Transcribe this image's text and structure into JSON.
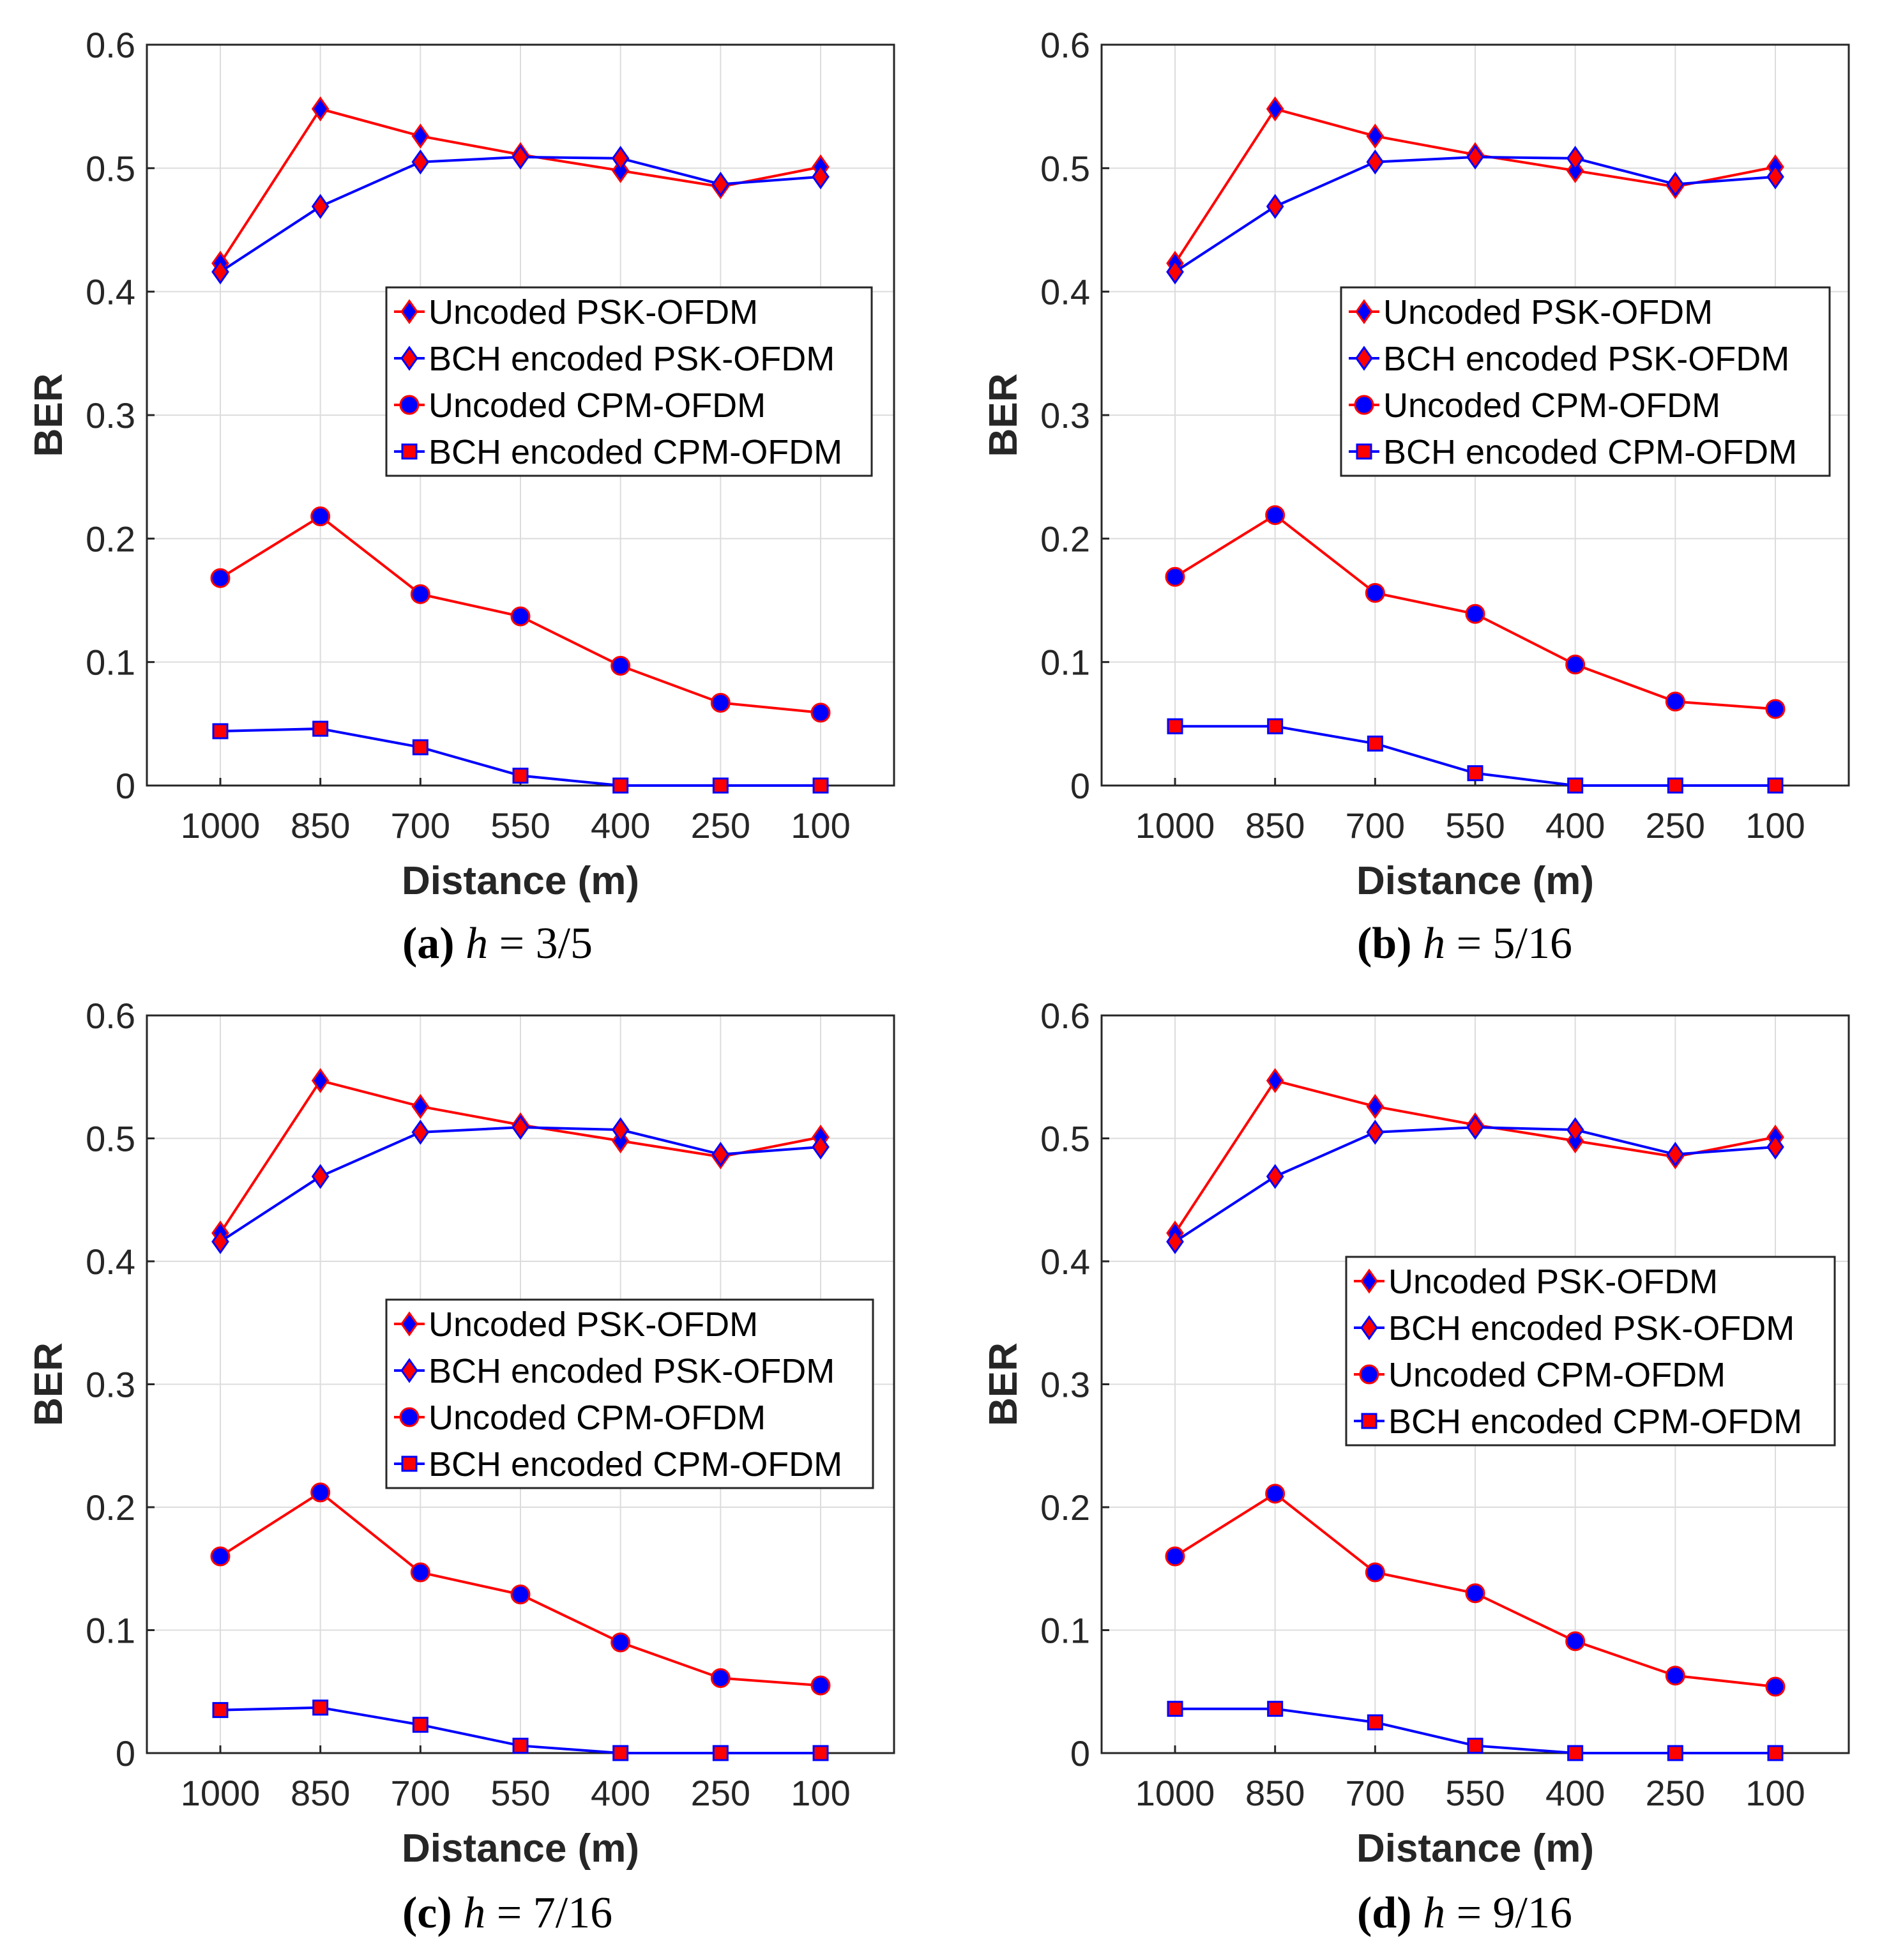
{
  "colors": {
    "red": "#ff0000",
    "blue": "#0000ff",
    "grid": "#dcdcdc",
    "axis": "#262626"
  },
  "chart_data": [
    {
      "type": "line",
      "caption": {
        "letter": "(a)",
        "variable": "h",
        "equals": "=",
        "value": "3/5"
      },
      "xlabel": "Distance (m)",
      "ylabel": "BER",
      "categories": [
        "1000",
        "850",
        "700",
        "550",
        "400",
        "250",
        "100"
      ],
      "ylim": [
        0,
        0.6
      ],
      "yticks": [
        "0",
        "0.1",
        "0.2",
        "0.3",
        "0.4",
        "0.5",
        "0.6"
      ],
      "grid": true,
      "legend_position": "right-middle",
      "series": [
        {
          "name": "Uncoded PSK-OFDM",
          "marker": "diamond",
          "line": "red",
          "face": "blue",
          "edge": "red",
          "values": [
            0.423,
            0.548,
            0.526,
            0.511,
            0.498,
            0.485,
            0.501
          ]
        },
        {
          "name": "BCH encoded PSK-OFDM",
          "marker": "diamond",
          "line": "blue",
          "face": "red",
          "edge": "blue",
          "values": [
            0.416,
            0.469,
            0.505,
            0.509,
            0.508,
            0.487,
            0.493
          ]
        },
        {
          "name": "Uncoded CPM-OFDM",
          "marker": "circle",
          "line": "red",
          "face": "blue",
          "edge": "red",
          "values": [
            0.168,
            0.218,
            0.155,
            0.137,
            0.097,
            0.067,
            0.059
          ]
        },
        {
          "name": "BCH encoded CPM-OFDM",
          "marker": "square",
          "line": "blue",
          "face": "red",
          "edge": "blue",
          "values": [
            0.044,
            0.046,
            0.031,
            0.008,
            0.0,
            0.0,
            0.0
          ]
        }
      ]
    },
    {
      "type": "line",
      "caption": {
        "letter": "(b)",
        "variable": "h",
        "equals": "=",
        "value": "5/16"
      },
      "xlabel": "Distance (m)",
      "ylabel": "BER",
      "categories": [
        "1000",
        "850",
        "700",
        "550",
        "400",
        "250",
        "100"
      ],
      "ylim": [
        0,
        0.6
      ],
      "yticks": [
        "0",
        "0.1",
        "0.2",
        "0.3",
        "0.4",
        "0.5",
        "0.6"
      ],
      "grid": true,
      "legend_position": "right-middle",
      "series": [
        {
          "name": "Uncoded PSK-OFDM",
          "marker": "diamond",
          "line": "red",
          "face": "blue",
          "edge": "red",
          "values": [
            0.423,
            0.548,
            0.526,
            0.511,
            0.498,
            0.485,
            0.501
          ]
        },
        {
          "name": "BCH encoded PSK-OFDM",
          "marker": "diamond",
          "line": "blue",
          "face": "red",
          "edge": "blue",
          "values": [
            0.416,
            0.469,
            0.505,
            0.509,
            0.508,
            0.487,
            0.493
          ]
        },
        {
          "name": "Uncoded CPM-OFDM",
          "marker": "circle",
          "line": "red",
          "face": "blue",
          "edge": "red",
          "values": [
            0.169,
            0.219,
            0.156,
            0.139,
            0.098,
            0.068,
            0.062
          ]
        },
        {
          "name": "BCH encoded CPM-OFDM",
          "marker": "square",
          "line": "blue",
          "face": "red",
          "edge": "blue",
          "values": [
            0.048,
            0.048,
            0.034,
            0.01,
            0.0,
            0.0,
            0.0
          ]
        }
      ]
    },
    {
      "type": "line",
      "caption": {
        "letter": "(c)",
        "variable": "h",
        "equals": "=",
        "value": "7/16"
      },
      "xlabel": "Distance (m)",
      "ylabel": "BER",
      "categories": [
        "1000",
        "850",
        "700",
        "550",
        "400",
        "250",
        "100"
      ],
      "ylim": [
        0,
        0.6
      ],
      "yticks": [
        "0",
        "0.1",
        "0.2",
        "0.3",
        "0.4",
        "0.5",
        "0.6"
      ],
      "grid": true,
      "legend_position": "right-middle",
      "series": [
        {
          "name": "Uncoded PSK-OFDM",
          "marker": "diamond",
          "line": "red",
          "face": "blue",
          "edge": "red",
          "values": [
            0.423,
            0.547,
            0.526,
            0.511,
            0.498,
            0.485,
            0.501
          ]
        },
        {
          "name": "BCH encoded PSK-OFDM",
          "marker": "diamond",
          "line": "blue",
          "face": "red",
          "edge": "blue",
          "values": [
            0.416,
            0.469,
            0.505,
            0.509,
            0.507,
            0.487,
            0.493
          ]
        },
        {
          "name": "Uncoded CPM-OFDM",
          "marker": "circle",
          "line": "red",
          "face": "blue",
          "edge": "red",
          "values": [
            0.16,
            0.212,
            0.147,
            0.129,
            0.09,
            0.061,
            0.055
          ]
        },
        {
          "name": "BCH encoded CPM-OFDM",
          "marker": "square",
          "line": "blue",
          "face": "red",
          "edge": "blue",
          "values": [
            0.035,
            0.037,
            0.023,
            0.006,
            0.0,
            0.0,
            0.0
          ]
        }
      ]
    },
    {
      "type": "line",
      "caption": {
        "letter": "(d)",
        "variable": "h",
        "equals": "=",
        "value": "9/16"
      },
      "xlabel": "Distance (m)",
      "ylabel": "BER",
      "categories": [
        "1000",
        "850",
        "700",
        "550",
        "400",
        "250",
        "100"
      ],
      "ylim": [
        0,
        0.6
      ],
      "yticks": [
        "0",
        "0.1",
        "0.2",
        "0.3",
        "0.4",
        "0.5",
        "0.6"
      ],
      "grid": true,
      "legend_position": "right-middle",
      "series": [
        {
          "name": "Uncoded PSK-OFDM",
          "marker": "diamond",
          "line": "red",
          "face": "blue",
          "edge": "red",
          "values": [
            0.423,
            0.547,
            0.526,
            0.511,
            0.498,
            0.485,
            0.501
          ]
        },
        {
          "name": "BCH encoded PSK-OFDM",
          "marker": "diamond",
          "line": "blue",
          "face": "red",
          "edge": "blue",
          "values": [
            0.416,
            0.469,
            0.505,
            0.509,
            0.507,
            0.487,
            0.493
          ]
        },
        {
          "name": "Uncoded CPM-OFDM",
          "marker": "circle",
          "line": "red",
          "face": "blue",
          "edge": "red",
          "values": [
            0.16,
            0.211,
            0.147,
            0.13,
            0.091,
            0.063,
            0.054
          ]
        },
        {
          "name": "BCH encoded CPM-OFDM",
          "marker": "square",
          "line": "blue",
          "face": "red",
          "edge": "blue",
          "values": [
            0.036,
            0.036,
            0.025,
            0.006,
            0.0,
            0.0,
            0.0
          ]
        }
      ]
    }
  ]
}
